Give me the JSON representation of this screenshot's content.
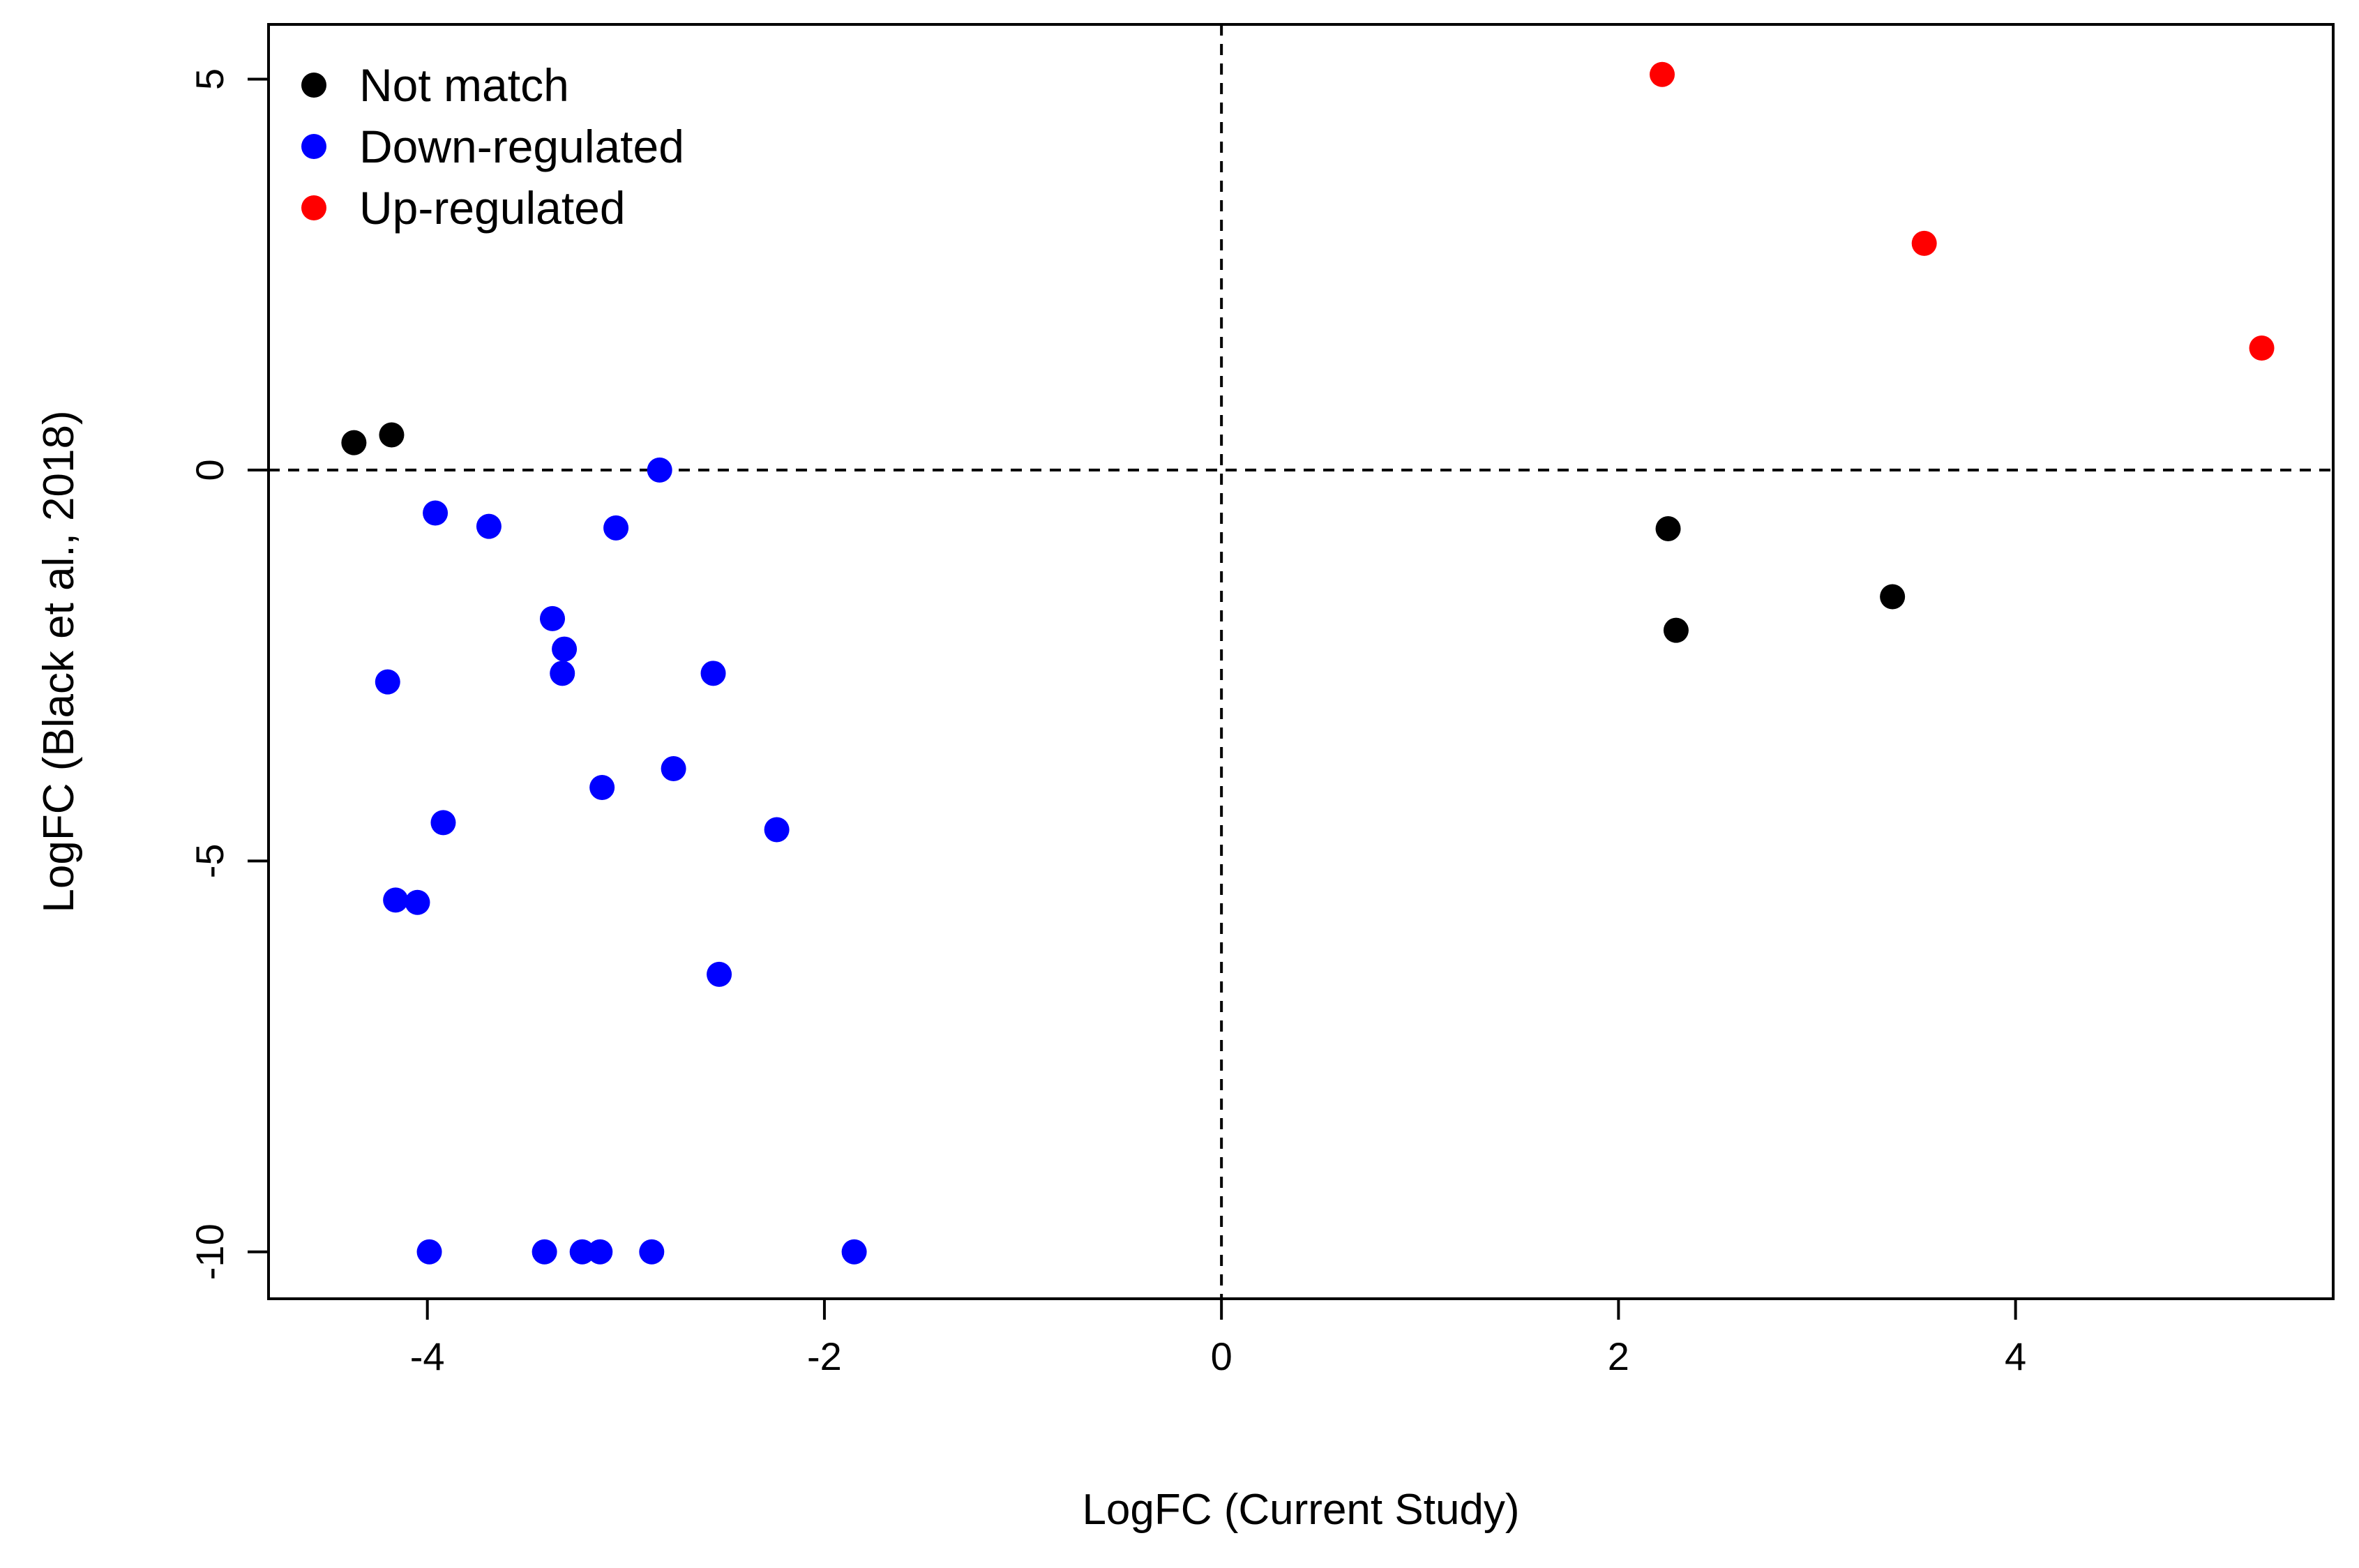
{
  "chart_data": {
    "type": "scatter",
    "xlabel": "LogFC (Current Study)",
    "ylabel": "LogFC (Black et al., 2018)",
    "xlim": [
      -4.8,
      5.6
    ],
    "ylim": [
      -10.6,
      5.7
    ],
    "x_ticks": [
      -4,
      -2,
      0,
      2,
      4
    ],
    "y_ticks": [
      -10,
      -5,
      0,
      5
    ],
    "reference_lines": {
      "x": 0,
      "y": 0,
      "style": "dashed"
    },
    "grid": false,
    "legend_position": "top-left",
    "series": [
      {
        "name": "Not match",
        "color": "#000000",
        "points": [
          [
            -4.37,
            0.35
          ],
          [
            -4.18,
            0.45
          ],
          [
            2.25,
            -0.75
          ],
          [
            2.29,
            -2.05
          ],
          [
            3.38,
            -1.62
          ]
        ]
      },
      {
        "name": "Down-regulated",
        "color": "#0000ff",
        "points": [
          [
            -2.83,
            0.0
          ],
          [
            -3.96,
            -0.55
          ],
          [
            -3.69,
            -0.72
          ],
          [
            -3.05,
            -0.74
          ],
          [
            -3.37,
            -1.9
          ],
          [
            -3.31,
            -2.29
          ],
          [
            -3.32,
            -2.6
          ],
          [
            -2.56,
            -2.6
          ],
          [
            -4.2,
            -2.71
          ],
          [
            -2.76,
            -3.82
          ],
          [
            -3.12,
            -4.06
          ],
          [
            -3.92,
            -4.51
          ],
          [
            -2.24,
            -4.6
          ],
          [
            -4.16,
            -5.5
          ],
          [
            -4.05,
            -5.53
          ],
          [
            -2.53,
            -6.45
          ],
          [
            -3.99,
            -10.0
          ],
          [
            -3.41,
            -10.0
          ],
          [
            -3.22,
            -10.0
          ],
          [
            -3.13,
            -10.0
          ],
          [
            -2.87,
            -10.0
          ],
          [
            -1.85,
            -10.0
          ]
        ]
      },
      {
        "name": "Up-regulated",
        "color": "#ff0000",
        "points": [
          [
            2.22,
            5.06
          ],
          [
            3.54,
            2.9
          ],
          [
            5.24,
            1.56
          ]
        ]
      }
    ]
  }
}
